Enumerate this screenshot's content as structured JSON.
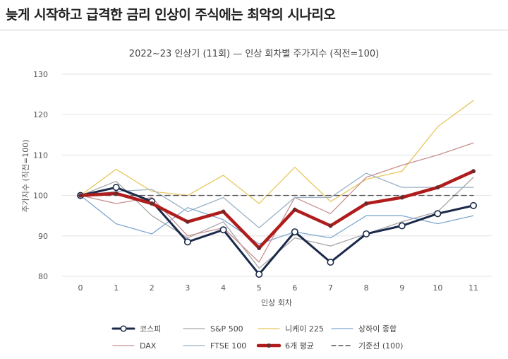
{
  "headline": "늦게 시작하고 급격한 금리 인상이 주식에는 최악의 시나리오",
  "chart_data": {
    "type": "line",
    "title": "2022~23 인상기 (11회) — 인상 회차별 주가지수 (직전=100)",
    "xlabel": "인상 회차",
    "ylabel": "주가지수 (직전=100)",
    "x": [
      0,
      1,
      2,
      3,
      4,
      5,
      6,
      7,
      8,
      9,
      10,
      11
    ],
    "ylim": [
      80,
      130
    ],
    "yticks": [
      80,
      90,
      100,
      110,
      120,
      130
    ],
    "grid": true,
    "legend_position": "bottom",
    "series": [
      {
        "name": "코스피",
        "color": "#1b2a4a",
        "style": "bold-markers",
        "values": [
          100,
          102,
          98.5,
          88.5,
          91.5,
          80.5,
          91,
          83.5,
          90.5,
          92.5,
          95.5,
          97.5
        ]
      },
      {
        "name": "S&P 500",
        "color": "#a6a6a6",
        "style": "thin",
        "values": [
          100,
          103.5,
          95,
          89.5,
          93.5,
          82,
          89.5,
          87.5,
          90.5,
          93.5,
          96,
          104.5
        ]
      },
      {
        "name": "니케이 225",
        "color": "#e8c65a",
        "style": "thin",
        "values": [
          100,
          106.5,
          101,
          100,
          105,
          98,
          107,
          98.5,
          104,
          106,
          117,
          123.5
        ]
      },
      {
        "name": "상하이 종합",
        "color": "#7fa8cf",
        "style": "thin",
        "values": [
          100,
          93,
          90.5,
          97,
          94,
          88,
          91,
          89.5,
          95,
          95,
          93,
          95
        ]
      },
      {
        "name": "DAX",
        "color": "#c98f8f",
        "style": "thin",
        "values": [
          100,
          98,
          99.5,
          90,
          92,
          83.5,
          99.5,
          95.5,
          104.5,
          107.5,
          110,
          113
        ]
      },
      {
        "name": "FTSE 100",
        "color": "#9cb1c6",
        "style": "thin",
        "values": [
          100,
          101,
          101.5,
          96,
          99.5,
          92,
          99.5,
          99.5,
          105.5,
          102,
          102,
          102
        ]
      },
      {
        "name": "6개 평균",
        "color": "#b01c1c",
        "style": "bold",
        "values": [
          100,
          100.5,
          98,
          93.5,
          96,
          87,
          96.5,
          92.5,
          98,
          99.5,
          102,
          106
        ]
      },
      {
        "name": "기준선 (100)",
        "color": "#555555",
        "style": "dashed",
        "values": [
          100,
          100,
          100,
          100,
          100,
          100,
          100,
          100,
          100,
          100,
          100,
          100
        ]
      }
    ]
  }
}
